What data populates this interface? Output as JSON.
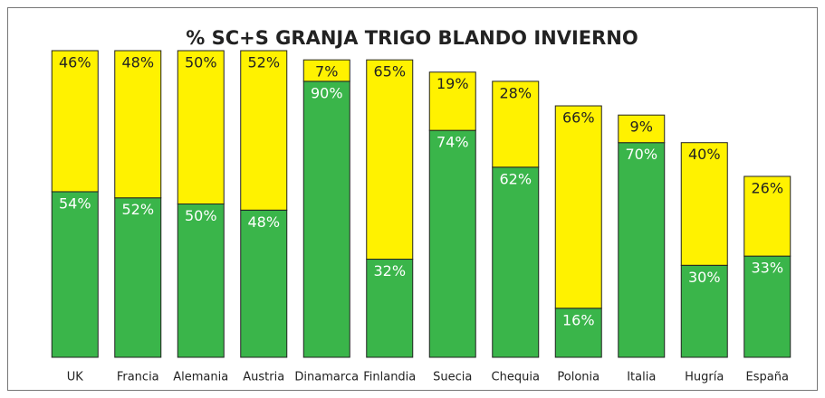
{
  "chart_data": {
    "type": "stacked_bar",
    "title": "% SC+S GRANJA TRIGO BLANDO INVIERNO",
    "categories": [
      "UK",
      "Francia",
      "Alemania",
      "Austria",
      "Dinamarca",
      "Finlandia",
      "Suecia",
      "Chequia",
      "Polonia",
      "Italia",
      "Hugría",
      "España"
    ],
    "series": [
      {
        "color": "#3ab54a",
        "label_color": "#ffffff",
        "values": [
          54,
          52,
          50,
          48,
          90,
          32,
          74,
          62,
          16,
          70,
          30,
          33
        ],
        "value_labels": [
          "54%",
          "52%",
          "50%",
          "48%",
          "90%",
          "32%",
          "74%",
          "62%",
          "16%",
          "70%",
          "30%",
          "33%"
        ]
      },
      {
        "color": "#fff200",
        "label_color": "#222222",
        "values": [
          46,
          48,
          50,
          52,
          7,
          65,
          19,
          28,
          66,
          9,
          40,
          26
        ],
        "value_labels": [
          "46%",
          "48%",
          "50%",
          "52%",
          "7%",
          "65%",
          "19%",
          "28%",
          "66%",
          "9%",
          "40%",
          "26%"
        ]
      }
    ]
  }
}
